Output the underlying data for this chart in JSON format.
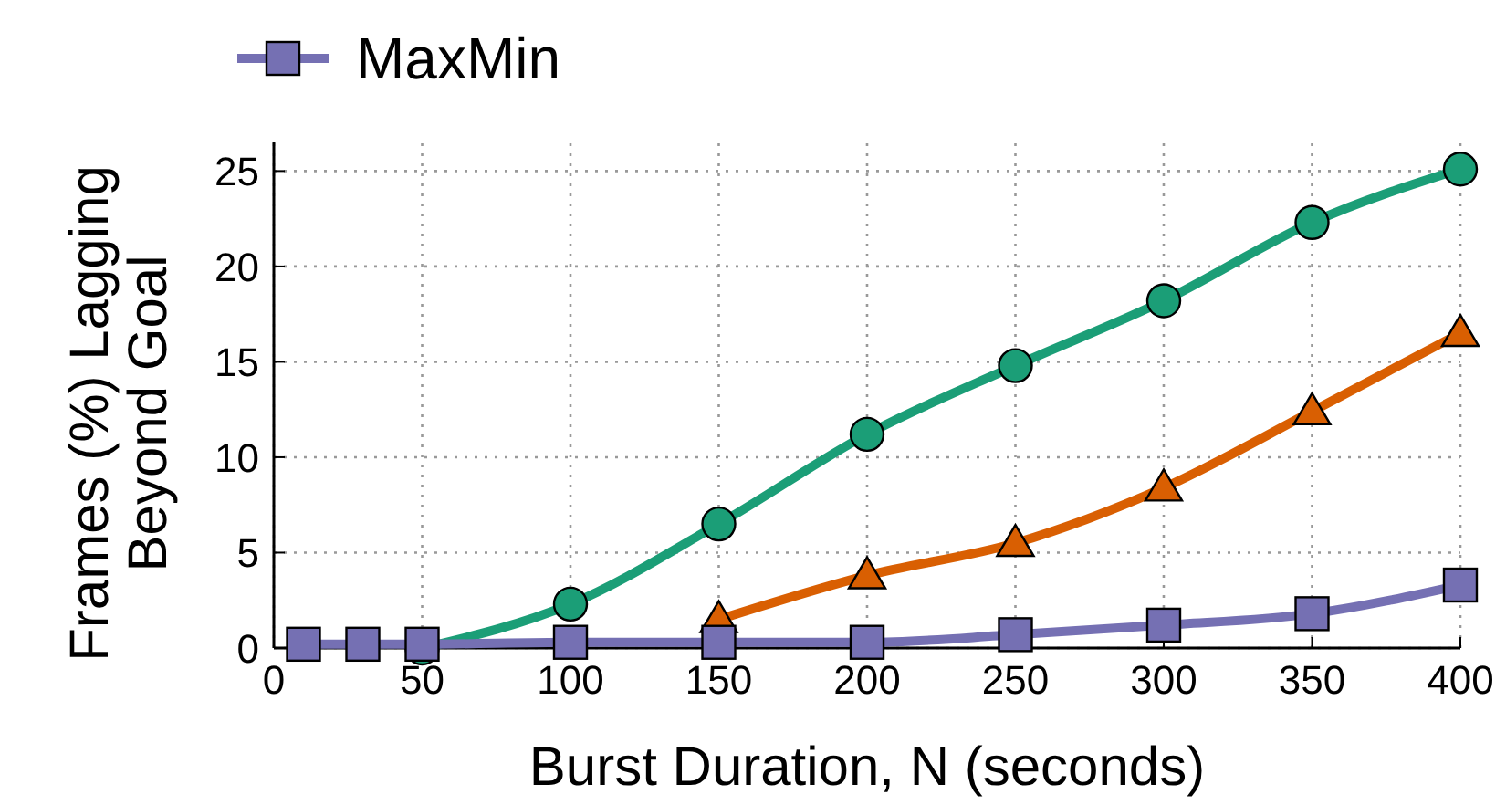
{
  "chart_data": {
    "type": "line",
    "xlabel": "Burst Duration, N (seconds)",
    "ylabel": "Frames (%) Lagging\nBeyond Goal",
    "xlim": [
      0,
      400
    ],
    "xticks": [
      0,
      50,
      100,
      150,
      200,
      250,
      300,
      350,
      400
    ],
    "ylim": [
      0,
      26.5
    ],
    "yticks": [
      0,
      5,
      10,
      15,
      20,
      25
    ],
    "grid": true,
    "legend": "top left",
    "series": [
      {
        "color": "#1b9e77",
        "marker": "circle",
        "x": [
          50,
          100,
          150,
          200,
          250,
          300,
          350,
          400
        ],
        "values": [
          0,
          2.3,
          6.5,
          11.2,
          14.8,
          18.2,
          22.3,
          25.1
        ]
      },
      {
        "color": "#d95f02",
        "marker": "triangle",
        "x": [
          150,
          200,
          250,
          300,
          350,
          400
        ],
        "values": [
          1.5,
          3.8,
          5.5,
          8.4,
          12.4,
          16.5
        ]
      },
      {
        "name": "MaxMin",
        "color": "#7570b3",
        "marker": "square",
        "x": [
          10,
          30,
          50,
          100,
          150,
          200,
          250,
          300,
          350,
          400
        ],
        "values": [
          0.2,
          0.2,
          0.2,
          0.3,
          0.3,
          0.3,
          0.7,
          1.2,
          1.8,
          3.3
        ]
      }
    ]
  }
}
